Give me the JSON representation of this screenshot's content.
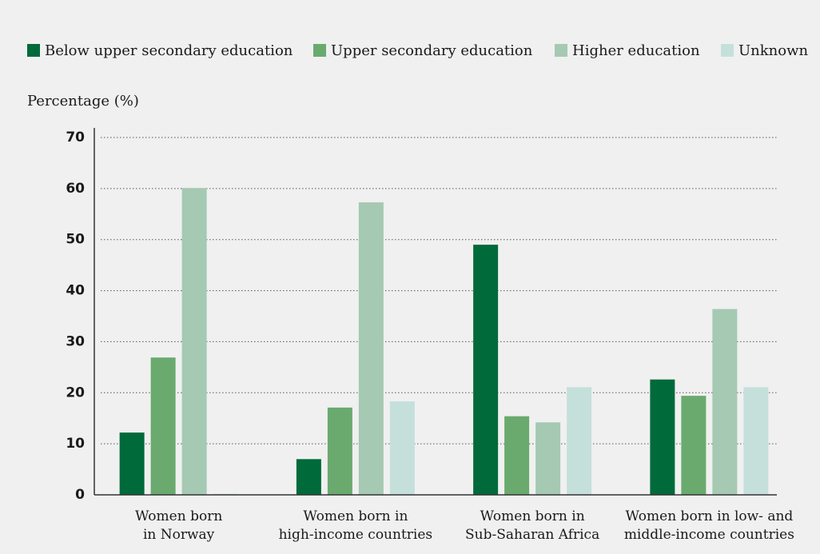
{
  "chart_data": {
    "type": "bar",
    "y_label": "Percentage (%)",
    "categories": [
      "Women born\nin Norway",
      "Women born in\nhigh-income countries",
      "Women born in\nSub-Saharan Africa",
      "Women born in low- and\nmiddle-income countries"
    ],
    "series": [
      {
        "name": "Below upper secondary education",
        "color": "#006a3a",
        "values": [
          12.2,
          7,
          49,
          22.6
        ]
      },
      {
        "name": "Upper secondary education",
        "color": "#6aaa6e",
        "values": [
          26.9,
          17.1,
          15.4,
          19.4
        ]
      },
      {
        "name": "Higher education",
        "color": "#a5c9b3",
        "values": [
          60.1,
          57.3,
          14.2,
          36.4
        ]
      },
      {
        "name": "Unknown",
        "color": "#c5e0da",
        "values": [
          0.2,
          18.3,
          21.1,
          21.1
        ]
      }
    ],
    "ylim": [
      0,
      70
    ],
    "yticks": [
      0,
      10,
      20,
      30,
      40,
      50,
      60,
      70
    ],
    "grid": true,
    "legend": "top"
  }
}
